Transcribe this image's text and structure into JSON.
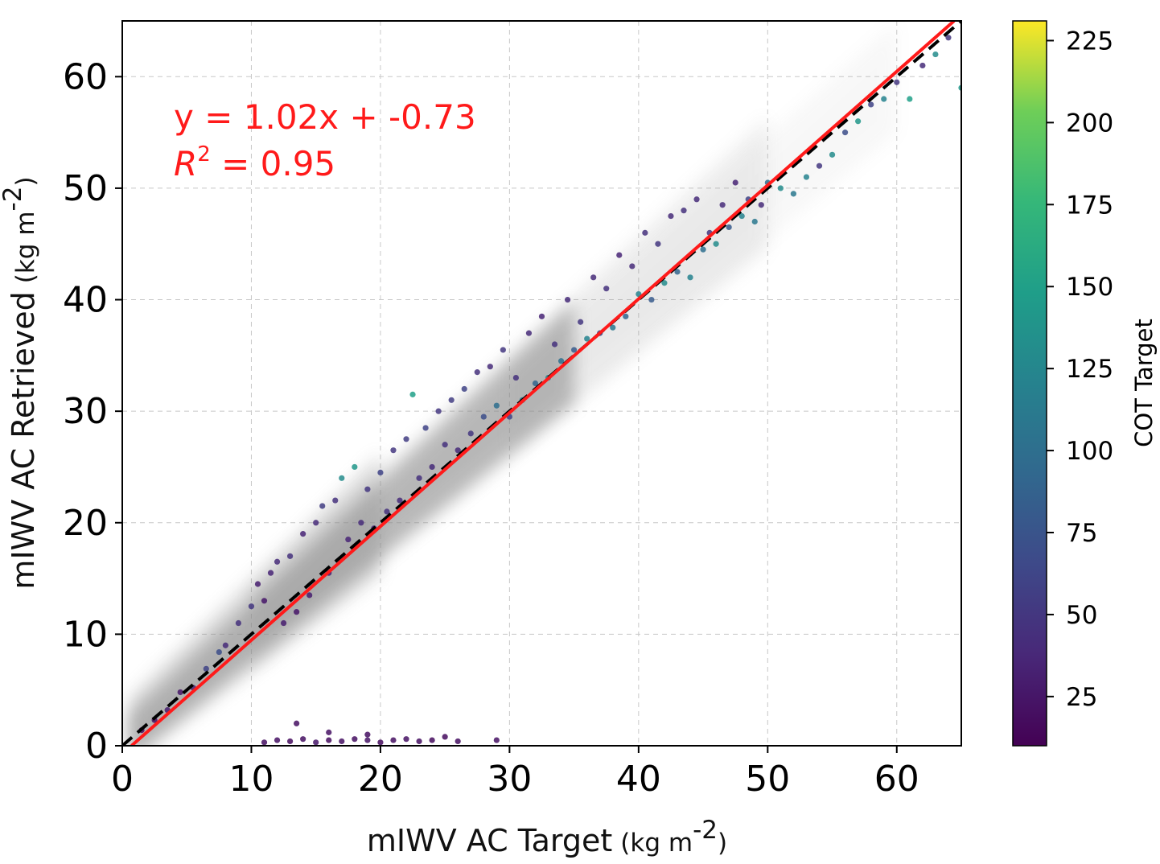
{
  "chart_data": {
    "type": "scatter",
    "xlabel": "mIWV AC Target",
    "xlabel_unit": "(kg m",
    "xlabel_unit_sup": "-2",
    "xlabel_unit_close": ")",
    "ylabel": "mIWV AC Retrieved",
    "ylabel_unit": "(kg m",
    "ylabel_unit_sup": "-2",
    "ylabel_unit_close": ")",
    "xlim": [
      0,
      65
    ],
    "ylim": [
      0,
      65
    ],
    "x_ticks": [
      0,
      10,
      20,
      30,
      40,
      50,
      60
    ],
    "y_ticks": [
      0,
      10,
      20,
      30,
      40,
      50,
      60
    ],
    "x_tick_labels": [
      "0",
      "10",
      "20",
      "30",
      "40",
      "50",
      "60"
    ],
    "y_tick_labels": [
      "0",
      "10",
      "20",
      "30",
      "40",
      "50",
      "60"
    ],
    "grid": true,
    "grid_style": "dashed",
    "colorbar": {
      "label": "COT Target",
      "colormap": "viridis",
      "range": [
        10,
        231
      ],
      "ticks": [
        25,
        50,
        75,
        100,
        125,
        150,
        175,
        200,
        225
      ],
      "tick_labels": [
        "25",
        "50",
        "75",
        "100",
        "125",
        "150",
        "175",
        "200",
        "225"
      ]
    },
    "annotation": {
      "equation": "y = 1.02x + -0.73",
      "r2_symbol": "R",
      "r2_sup": "2",
      "r2_value": " = 0.95"
    },
    "fit_line": {
      "slope": 1.02,
      "intercept": -0.73,
      "color": "#ff1a1a"
    },
    "identity_line": {
      "slope": 1,
      "intercept": 0,
      "color": "#000000",
      "style": "dashed"
    },
    "series": [
      {
        "name": "",
        "color_by": "COT Target",
        "points": [
          [
            1.5,
            1.4,
            15
          ],
          [
            2.5,
            2.3,
            20
          ],
          [
            3.5,
            3.2,
            30
          ],
          [
            4.5,
            4.8,
            25
          ],
          [
            5.5,
            5.2,
            35
          ],
          [
            6.5,
            6.9,
            60
          ],
          [
            7.5,
            8.4,
            70
          ],
          [
            8.0,
            9.0,
            40
          ],
          [
            9.0,
            11.0,
            45
          ],
          [
            10.0,
            12.5,
            50
          ],
          [
            10.5,
            14.5,
            30
          ],
          [
            11.0,
            13.0,
            25
          ],
          [
            11.5,
            15.5,
            35
          ],
          [
            12.0,
            16.5,
            40
          ],
          [
            12.5,
            11.0,
            30
          ],
          [
            13.0,
            17.0,
            45
          ],
          [
            13.5,
            12.0,
            25
          ],
          [
            14.0,
            19.0,
            35
          ],
          [
            14.5,
            13.5,
            30
          ],
          [
            15.0,
            20.0,
            40
          ],
          [
            15.5,
            21.5,
            55
          ],
          [
            16.0,
            15.5,
            30
          ],
          [
            16.5,
            22.0,
            45
          ],
          [
            17.0,
            24.0,
            130
          ],
          [
            17.5,
            18.5,
            35
          ],
          [
            18.0,
            25.0,
            140
          ],
          [
            18.5,
            20.0,
            40
          ],
          [
            19.0,
            23.0,
            50
          ],
          [
            19.5,
            19.5,
            35
          ],
          [
            20.0,
            24.5,
            60
          ],
          [
            20.5,
            21.0,
            45
          ],
          [
            21.0,
            26.5,
            50
          ],
          [
            21.5,
            22.0,
            40
          ],
          [
            22.0,
            27.5,
            55
          ],
          [
            22.5,
            31.5,
            150
          ],
          [
            23.0,
            24.0,
            45
          ],
          [
            23.5,
            28.5,
            60
          ],
          [
            24.0,
            25.0,
            40
          ],
          [
            24.5,
            30.0,
            50
          ],
          [
            25.0,
            27.0,
            45
          ],
          [
            25.5,
            31.0,
            55
          ],
          [
            26.0,
            26.5,
            40
          ],
          [
            26.5,
            32.0,
            60
          ],
          [
            27.0,
            28.0,
            50
          ],
          [
            27.5,
            33.5,
            45
          ],
          [
            28.0,
            29.5,
            70
          ],
          [
            28.5,
            34.0,
            40
          ],
          [
            29.0,
            30.5,
            100
          ],
          [
            29.5,
            35.5,
            50
          ],
          [
            30.0,
            29.5,
            60
          ],
          [
            30.5,
            33.0,
            45
          ],
          [
            31.0,
            31.0,
            110
          ],
          [
            31.5,
            37.0,
            40
          ],
          [
            32.0,
            32.5,
            90
          ],
          [
            32.5,
            38.5,
            35
          ],
          [
            33.0,
            33.0,
            120
          ],
          [
            33.5,
            36.0,
            45
          ],
          [
            34.0,
            34.5,
            100
          ],
          [
            34.5,
            40.0,
            40
          ],
          [
            35.0,
            35.5,
            80
          ],
          [
            35.5,
            38.0,
            50
          ],
          [
            36.0,
            36.5,
            120
          ],
          [
            36.5,
            42.0,
            40
          ],
          [
            37.0,
            37.0,
            60
          ],
          [
            37.5,
            41.0,
            45
          ],
          [
            38.0,
            37.5,
            110
          ],
          [
            38.5,
            44.0,
            35
          ],
          [
            39.0,
            38.5,
            90
          ],
          [
            39.5,
            43.0,
            40
          ],
          [
            40.0,
            40.5,
            120
          ],
          [
            40.5,
            46.0,
            45
          ],
          [
            41.0,
            40.0,
            80
          ],
          [
            41.5,
            45.0,
            50
          ],
          [
            42.0,
            41.5,
            130
          ],
          [
            42.5,
            47.5,
            40
          ],
          [
            43.0,
            42.5,
            90
          ],
          [
            43.5,
            48.0,
            45
          ],
          [
            44.0,
            42.0,
            120
          ],
          [
            44.5,
            49.0,
            40
          ],
          [
            45.0,
            44.5,
            100
          ],
          [
            45.5,
            46.0,
            50
          ],
          [
            46.0,
            45.0,
            130
          ],
          [
            46.5,
            48.5,
            40
          ],
          [
            47.0,
            46.5,
            80
          ],
          [
            47.5,
            50.5,
            35
          ],
          [
            48.0,
            47.5,
            120
          ],
          [
            48.5,
            49.0,
            60
          ],
          [
            49.0,
            47.0,
            110
          ],
          [
            49.5,
            48.5,
            40
          ],
          [
            50.0,
            50.5,
            100
          ],
          [
            51.0,
            50.0,
            130
          ],
          [
            52.0,
            49.5,
            110
          ],
          [
            53.0,
            51.0,
            120
          ],
          [
            54.0,
            52.0,
            50
          ],
          [
            55.0,
            53.0,
            130
          ],
          [
            56.0,
            55.0,
            70
          ],
          [
            57.0,
            56.0,
            140
          ],
          [
            58.0,
            57.5,
            60
          ],
          [
            59.0,
            58.0,
            120
          ],
          [
            60.0,
            59.5,
            50
          ],
          [
            61.0,
            58.0,
            150
          ],
          [
            62.0,
            61.0,
            40
          ],
          [
            63.0,
            62.0,
            130
          ],
          [
            64.0,
            63.5,
            50
          ],
          [
            65.0,
            59.0,
            140
          ],
          [
            11.0,
            0.3,
            20
          ],
          [
            12.0,
            0.5,
            22
          ],
          [
            13.0,
            0.4,
            18
          ],
          [
            14.0,
            0.6,
            20
          ],
          [
            15.0,
            0.3,
            25
          ],
          [
            16.0,
            0.5,
            18
          ],
          [
            17.0,
            0.4,
            22
          ],
          [
            18.0,
            0.6,
            20
          ],
          [
            19.0,
            0.5,
            24
          ],
          [
            20.0,
            0.3,
            18
          ],
          [
            21.0,
            0.5,
            20
          ],
          [
            22.0,
            0.6,
            22
          ],
          [
            23.0,
            0.4,
            20
          ],
          [
            24.0,
            0.5,
            18
          ],
          [
            26.0,
            0.4,
            20
          ],
          [
            29.0,
            0.5,
            22
          ],
          [
            13.5,
            2.0,
            20
          ],
          [
            16.0,
            1.2,
            22
          ],
          [
            19.0,
            1.0,
            20
          ],
          [
            25.0,
            0.8,
            18
          ]
        ]
      }
    ]
  }
}
